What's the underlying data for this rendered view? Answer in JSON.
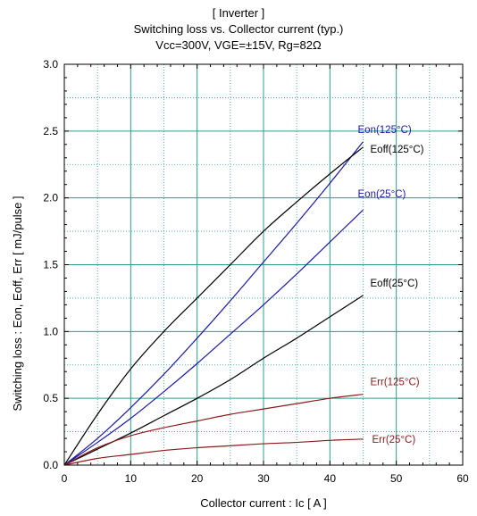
{
  "chart_data": {
    "type": "line",
    "title_lines": [
      "[ Inverter ]",
      "Switching loss  vs.  Collector current  (typ.)",
      "Vcc=300V, VGE=±15V, Rg=82Ω"
    ],
    "xlabel": "Collector current  :  Ic  [ A ]",
    "ylabel": "Switching loss  :  Eon, Eoff, Err  [ mJ/pulse ]",
    "xlim": [
      0,
      60
    ],
    "ylim": [
      0,
      3.0
    ],
    "x_ticks": [
      "0",
      "10",
      "20",
      "30",
      "40",
      "50",
      "60"
    ],
    "y_ticks": [
      "0.0",
      "0.5",
      "1.0",
      "1.5",
      "2.0",
      "2.5",
      "3.0"
    ],
    "grid": true,
    "series": [
      {
        "name": "Eon(125°C)",
        "color": "#1a1aa6",
        "x": [
          0,
          5,
          10,
          15,
          20,
          25,
          30,
          35,
          40,
          45
        ],
        "y": [
          0,
          0.2,
          0.43,
          0.68,
          0.95,
          1.23,
          1.52,
          1.81,
          2.11,
          2.42
        ]
      },
      {
        "name": "Eoff(125°C)",
        "color": "#000000",
        "x": [
          0,
          5,
          10,
          15,
          20,
          25,
          30,
          35,
          40,
          45
        ],
        "y": [
          0,
          0.38,
          0.72,
          1.0,
          1.25,
          1.5,
          1.75,
          1.97,
          2.18,
          2.38
        ]
      },
      {
        "name": "Eon(25°C)",
        "color": "#1a1aa6",
        "x": [
          0,
          5,
          10,
          15,
          20,
          25,
          30,
          35,
          40,
          45
        ],
        "y": [
          0,
          0.17,
          0.35,
          0.55,
          0.76,
          0.98,
          1.2,
          1.43,
          1.67,
          1.91
        ]
      },
      {
        "name": "Eoff(25°C)",
        "color": "#000000",
        "x": [
          0,
          5,
          10,
          15,
          20,
          25,
          30,
          35,
          40,
          45
        ],
        "y": [
          0,
          0.12,
          0.24,
          0.37,
          0.5,
          0.64,
          0.8,
          0.95,
          1.11,
          1.27
        ]
      },
      {
        "name": "Err(125°C)",
        "color": "#8b1a1a",
        "x": [
          0,
          5,
          10,
          15,
          20,
          25,
          30,
          35,
          40,
          45
        ],
        "y": [
          0,
          0.13,
          0.22,
          0.28,
          0.33,
          0.38,
          0.42,
          0.46,
          0.5,
          0.53
        ]
      },
      {
        "name": "Err(25°C)",
        "color": "#8b1a1a",
        "x": [
          0,
          5,
          10,
          15,
          20,
          25,
          30,
          35,
          40,
          45
        ],
        "y": [
          0,
          0.05,
          0.08,
          0.11,
          0.13,
          0.145,
          0.16,
          0.17,
          0.185,
          0.195
        ]
      }
    ],
    "label_positions_hint": "line end labels right of each curve"
  },
  "colors": {
    "grid": "#2a9d8f",
    "grid_minor": "#2a9d8f",
    "axes": "#000000"
  }
}
